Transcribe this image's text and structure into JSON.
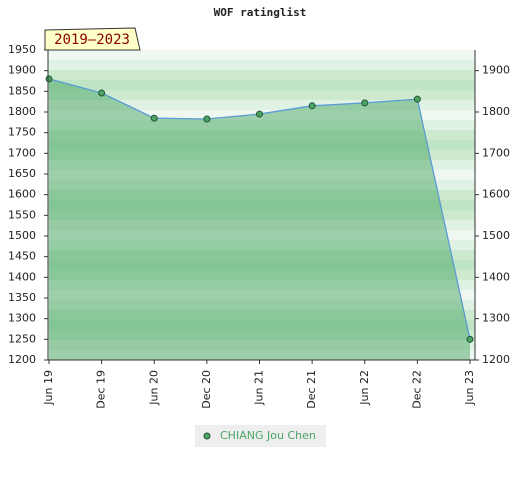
{
  "chart_data": {
    "type": "area",
    "title": "WOF ratinglist",
    "annotation": "2019–2023",
    "categories": [
      "Jun 19",
      "Dec 19",
      "Jun 20",
      "Dec 20",
      "Jun 21",
      "Dec 21",
      "Jun 22",
      "Dec 22",
      "Jun 23"
    ],
    "series": [
      {
        "name": "CHIANG Jou Chen",
        "color": "#4aa564",
        "values": [
          1880,
          1846,
          1785,
          1783,
          1795,
          1815,
          1822,
          1831,
          1250
        ]
      }
    ],
    "ylim": [
      1200,
      1950
    ],
    "yticks": [
      1200,
      1250,
      1300,
      1350,
      1400,
      1450,
      1500,
      1550,
      1600,
      1650,
      1700,
      1750,
      1800,
      1850,
      1900,
      1950
    ],
    "y2lim": [
      1200,
      1950
    ],
    "y2ticks": [
      1200,
      1300,
      1400,
      1500,
      1600,
      1700,
      1800,
      1900
    ],
    "legend": "bottom"
  }
}
